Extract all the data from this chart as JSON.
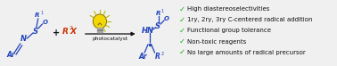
{
  "background_color": "#f0f0f0",
  "border_color": "#999999",
  "blue": "#2244bb",
  "red": "#cc3300",
  "black": "#111111",
  "green": "#22aa22",
  "gray": "#555555",
  "bulb_yellow": "#f5d800",
  "bulb_stem": "#888888",
  "ray_color": "#bbbb00",
  "checkmarks": [
    "High diastereoselectivities",
    "1ry, 2ry, 3ry C-centered radical addition",
    "Functional group tolerance",
    "Non-toxic reagents",
    "No large amounts of radical precursor"
  ],
  "arrow_label": "photocatalyst",
  "figsize": [
    3.78,
    0.74
  ],
  "dpi": 100
}
